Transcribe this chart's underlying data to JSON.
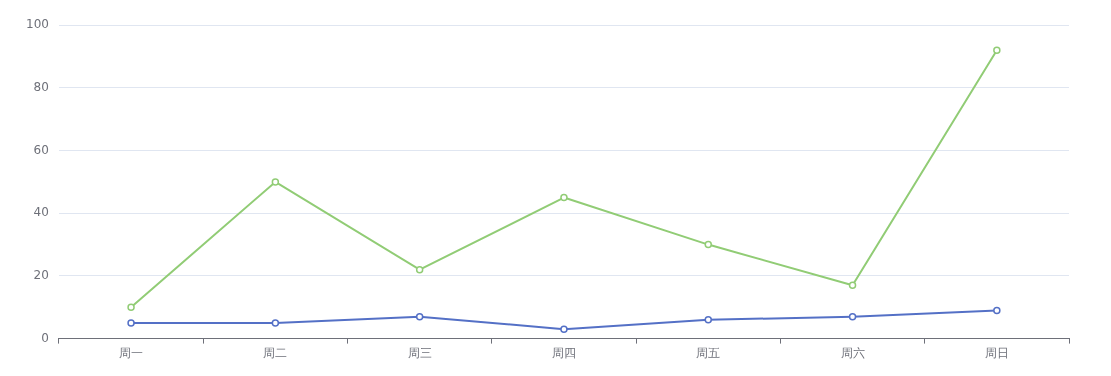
{
  "chart_data": {
    "type": "line",
    "categories": [
      "周一",
      "周二",
      "周三",
      "周四",
      "周五",
      "周六",
      "周日"
    ],
    "series": [
      {
        "color": "#91cc75",
        "values": [
          10,
          50,
          22,
          45,
          30,
          17,
          92
        ]
      },
      {
        "color": "#5470c6",
        "values": [
          5,
          5,
          7,
          3,
          6,
          7,
          9
        ]
      }
    ],
    "ylim": [
      0,
      100
    ],
    "yticks": [
      0,
      20,
      40,
      60,
      80,
      100
    ],
    "grid": "y",
    "marker": "circle",
    "line_style": "solid"
  }
}
